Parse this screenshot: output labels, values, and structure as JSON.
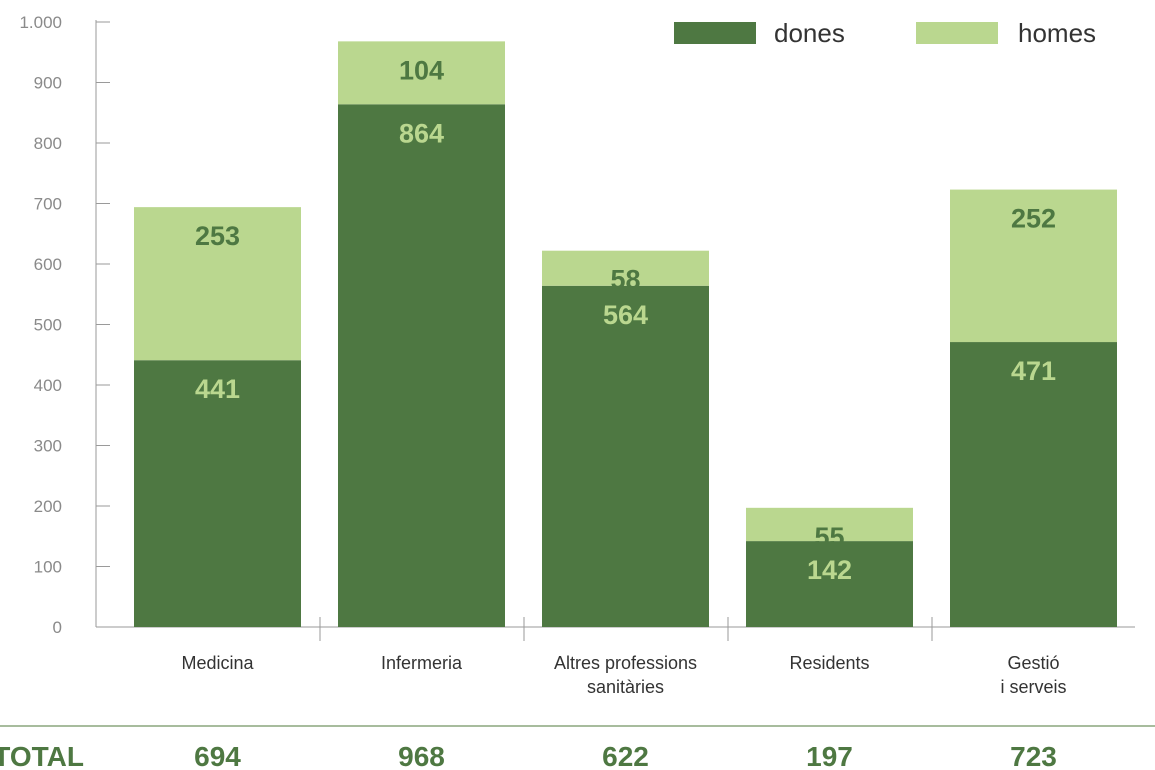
{
  "chart_data": {
    "type": "bar",
    "stacked": true,
    "categories": [
      [
        "Medicina"
      ],
      [
        "Infermeria"
      ],
      [
        "Altres professions",
        "sanitàries"
      ],
      [
        "Residents"
      ],
      [
        "Gestió",
        "i serveis"
      ]
    ],
    "series": [
      {
        "name": "dones",
        "color": "#4e7842",
        "label_color": "#bad78f",
        "values": [
          441,
          864,
          564,
          142,
          471
        ]
      },
      {
        "name": "homes",
        "color": "#bad78f",
        "label_color": "#4e7842",
        "values": [
          253,
          104,
          58,
          55,
          252
        ]
      }
    ],
    "ylim": [
      0,
      1000
    ],
    "yticks": [
      0,
      100,
      200,
      300,
      400,
      500,
      600,
      700,
      800,
      900,
      1000
    ],
    "ytick_labels": [
      "0",
      "100",
      "200",
      "300",
      "400",
      "500",
      "600",
      "700",
      "800",
      "900",
      "1.000"
    ],
    "legend_position": "top-right",
    "totals": {
      "label": "TOTAL",
      "values": [
        "694",
        "968",
        "622",
        "197",
        "723"
      ]
    }
  }
}
